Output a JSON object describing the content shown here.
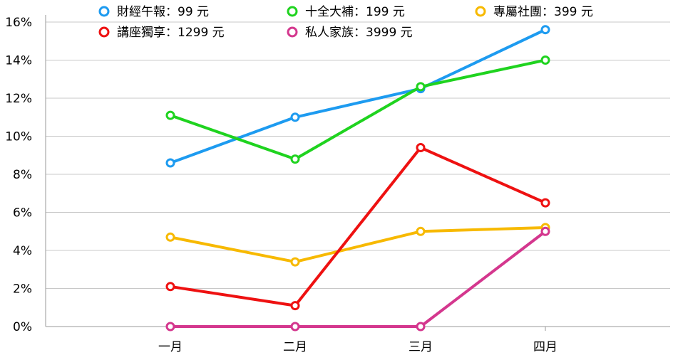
{
  "chart_data": {
    "type": "line",
    "categories": [
      "一月",
      "二月",
      "三月",
      "四月"
    ],
    "ylim": [
      0,
      16
    ],
    "yticks": [
      0,
      2,
      4,
      6,
      8,
      10,
      12,
      14,
      16
    ],
    "ytick_labels": [
      "0%",
      "2%",
      "4%",
      "6%",
      "8%",
      "10%",
      "12%",
      "14%",
      "16%"
    ],
    "grid": true,
    "legend_position": "top",
    "series": [
      {
        "name": "財經午報：99 元",
        "color": "#1d9bf0",
        "values": [
          8.6,
          11.0,
          12.5,
          15.6
        ]
      },
      {
        "name": "十全大補：199 元",
        "color": "#1fd31f",
        "values": [
          11.1,
          8.8,
          12.6,
          14.0
        ]
      },
      {
        "name": "專屬社團：399 元",
        "color": "#f7b900",
        "values": [
          4.7,
          3.4,
          5.0,
          5.2
        ]
      },
      {
        "name": "講座獨享：1299 元",
        "color": "#ee1111",
        "values": [
          2.1,
          1.1,
          9.4,
          6.5
        ]
      },
      {
        "name": "私人家族：3999 元",
        "color": "#d4378e",
        "values": [
          0.0,
          0.0,
          0.0,
          5.0
        ]
      }
    ]
  }
}
